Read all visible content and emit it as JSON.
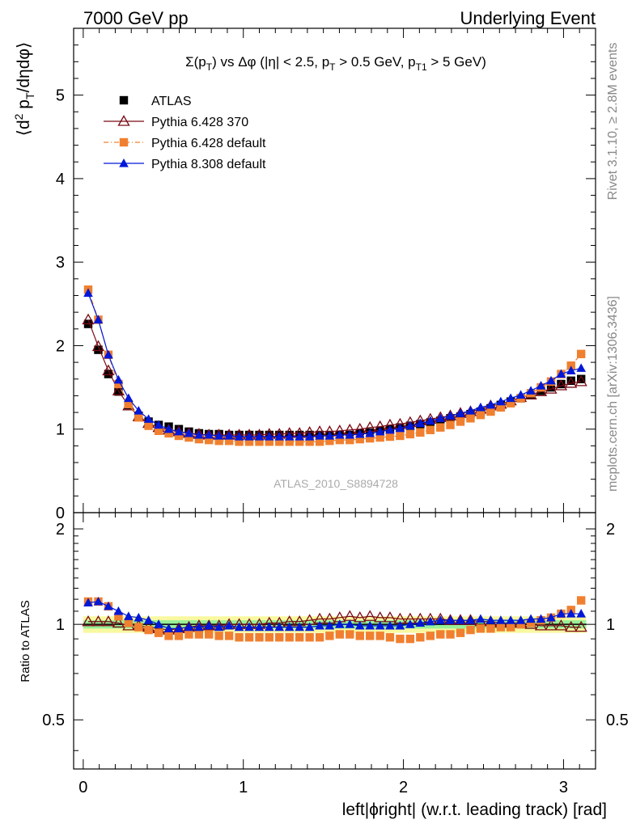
{
  "header": {
    "left": "7000 GeV pp",
    "right": "Underlying Event"
  },
  "side_text": {
    "rivet": "Rivet 3.1.10, ≥ 2.8M events",
    "mcplots": "mcplots.cern.ch [arXiv:1306.3436]"
  },
  "analysis_id": "ATLAS_2010_S8894728",
  "colors": {
    "atlas": "#000000",
    "p6_370": "#7a0a14",
    "p6_default": "#f08030",
    "p8_default": "#0018d8",
    "band_inner": "#98f098",
    "band_outer": "#f8f8a0"
  },
  "chart_data": [
    {
      "type": "scatter",
      "panel": "main",
      "title_parts": {
        "a": "Σ(p",
        "a_sub": "T",
        "b": ") vs Δφ (|η| < 2.5, p",
        "b_sub": "T",
        "c": " > 0.5 GeV, p",
        "c_sub": "T1",
        "d": " > 5 GeV)"
      },
      "ylabel_parts": {
        "a": "⟨d",
        "sup": "2",
        "b": " p",
        "sub": "T",
        "c": "/dηdφ⟩"
      },
      "xlim": [
        -0.06,
        3.2
      ],
      "ylim": [
        0,
        5.8
      ],
      "yticks": [
        0,
        1,
        2,
        3,
        4,
        5
      ],
      "ytick_labels": [
        "0",
        "1",
        "2",
        "3",
        "4",
        "5"
      ],
      "legend_placement": "top-left",
      "x": [
        0.031,
        0.094,
        0.157,
        0.22,
        0.283,
        0.346,
        0.408,
        0.471,
        0.534,
        0.597,
        0.66,
        0.723,
        0.785,
        0.848,
        0.911,
        0.974,
        1.037,
        1.1,
        1.162,
        1.225,
        1.288,
        1.351,
        1.414,
        1.477,
        1.539,
        1.602,
        1.665,
        1.728,
        1.791,
        1.854,
        1.916,
        1.979,
        2.042,
        2.105,
        2.168,
        2.231,
        2.293,
        2.356,
        2.419,
        2.482,
        2.545,
        2.608,
        2.67,
        2.733,
        2.796,
        2.859,
        2.922,
        2.985,
        3.047,
        3.11
      ],
      "series": [
        {
          "name": "ATLAS",
          "key": "atlas",
          "marker": "square",
          "values": [
            2.26,
            1.95,
            1.66,
            1.45,
            1.29,
            1.16,
            1.09,
            1.05,
            1.03,
            1.0,
            0.97,
            0.95,
            0.94,
            0.94,
            0.93,
            0.93,
            0.93,
            0.93,
            0.93,
            0.93,
            0.93,
            0.93,
            0.93,
            0.93,
            0.93,
            0.93,
            0.93,
            0.95,
            0.96,
            0.98,
            1.0,
            1.02,
            1.04,
            1.06,
            1.08,
            1.1,
            1.13,
            1.15,
            1.18,
            1.21,
            1.25,
            1.29,
            1.33,
            1.37,
            1.41,
            1.46,
            1.5,
            1.54,
            1.58,
            1.6
          ]
        },
        {
          "name": "Pythia 6.428 370",
          "key": "p6_370",
          "marker": "open-triangle",
          "values": [
            2.31,
            1.99,
            1.7,
            1.46,
            1.28,
            1.15,
            1.07,
            1.02,
            0.99,
            0.97,
            0.95,
            0.94,
            0.93,
            0.93,
            0.93,
            0.93,
            0.93,
            0.93,
            0.94,
            0.94,
            0.95,
            0.95,
            0.96,
            0.97,
            0.97,
            0.98,
            0.99,
            1.0,
            1.02,
            1.03,
            1.05,
            1.06,
            1.08,
            1.1,
            1.12,
            1.14,
            1.16,
            1.19,
            1.21,
            1.24,
            1.28,
            1.3,
            1.34,
            1.38,
            1.41,
            1.45,
            1.48,
            1.52,
            1.55,
            1.57
          ]
        },
        {
          "name": "Pythia 6.428 default",
          "key": "p6_default",
          "marker": "square-dashdot",
          "values": [
            2.67,
            2.31,
            1.89,
            1.54,
            1.3,
            1.14,
            1.04,
            0.98,
            0.95,
            0.92,
            0.9,
            0.88,
            0.87,
            0.86,
            0.86,
            0.85,
            0.85,
            0.85,
            0.85,
            0.85,
            0.85,
            0.85,
            0.85,
            0.85,
            0.86,
            0.87,
            0.87,
            0.88,
            0.89,
            0.9,
            0.91,
            0.92,
            0.94,
            0.96,
            0.99,
            1.02,
            1.05,
            1.09,
            1.13,
            1.17,
            1.21,
            1.26,
            1.31,
            1.37,
            1.43,
            1.5,
            1.57,
            1.66,
            1.76,
            1.9
          ]
        },
        {
          "name": "Pythia 8.308 default",
          "key": "p8_default",
          "marker": "triangle",
          "values": [
            2.63,
            2.31,
            1.89,
            1.59,
            1.37,
            1.22,
            1.12,
            1.05,
            1.0,
            0.97,
            0.95,
            0.93,
            0.93,
            0.92,
            0.92,
            0.91,
            0.91,
            0.91,
            0.91,
            0.91,
            0.91,
            0.91,
            0.91,
            0.92,
            0.92,
            0.93,
            0.93,
            0.94,
            0.95,
            0.97,
            0.99,
            1.01,
            1.04,
            1.07,
            1.1,
            1.13,
            1.16,
            1.19,
            1.22,
            1.26,
            1.29,
            1.33,
            1.37,
            1.41,
            1.46,
            1.52,
            1.58,
            1.66,
            1.7,
            1.73
          ]
        }
      ]
    },
    {
      "type": "scatter",
      "panel": "ratio",
      "xlabel": "left|ϕright| (w.r.t. leading track) [rad]",
      "ylabel": "Ratio to ATLAS",
      "xlim": [
        -0.06,
        3.2
      ],
      "ylim": [
        0.35,
        2.25
      ],
      "xticks": [
        0,
        1,
        2,
        3
      ],
      "xtick_labels": [
        "0",
        "1",
        "2",
        "3"
      ],
      "yticks": [
        0.5,
        1,
        2
      ],
      "ytick_labels": [
        "0.5",
        "1",
        "2"
      ],
      "band_inner": 0.03,
      "band_outer": 0.06,
      "series": [
        {
          "name": "Pythia 6.428 370",
          "key": "p6_370",
          "marker": "open-triangle",
          "values": [
            1.02,
            1.02,
            1.02,
            1.01,
            0.99,
            0.99,
            0.98,
            0.97,
            0.96,
            0.97,
            0.98,
            0.99,
            0.99,
            0.99,
            1.0,
            1.0,
            1.0,
            1.0,
            1.01,
            1.01,
            1.02,
            1.02,
            1.03,
            1.04,
            1.04,
            1.05,
            1.06,
            1.05,
            1.06,
            1.05,
            1.05,
            1.04,
            1.04,
            1.04,
            1.04,
            1.04,
            1.03,
            1.03,
            1.03,
            1.02,
            1.02,
            1.01,
            1.01,
            1.01,
            1.0,
            0.99,
            0.99,
            0.99,
            0.98,
            0.98
          ]
        },
        {
          "name": "Pythia 6.428 default",
          "key": "p6_default",
          "marker": "square",
          "values": [
            1.18,
            1.18,
            1.14,
            1.06,
            1.01,
            0.98,
            0.96,
            0.94,
            0.92,
            0.92,
            0.93,
            0.93,
            0.93,
            0.92,
            0.92,
            0.91,
            0.91,
            0.91,
            0.91,
            0.91,
            0.91,
            0.91,
            0.91,
            0.91,
            0.92,
            0.93,
            0.93,
            0.92,
            0.92,
            0.92,
            0.91,
            0.9,
            0.9,
            0.91,
            0.92,
            0.93,
            0.93,
            0.94,
            0.96,
            0.97,
            0.97,
            0.98,
            0.98,
            1.0,
            1.01,
            1.03,
            1.05,
            1.08,
            1.11,
            1.19
          ]
        },
        {
          "name": "Pythia 8.308 default",
          "key": "p8_default",
          "marker": "triangle",
          "values": [
            1.17,
            1.18,
            1.14,
            1.1,
            1.06,
            1.05,
            1.03,
            1.0,
            0.97,
            0.97,
            0.98,
            0.98,
            0.99,
            0.98,
            0.99,
            0.98,
            0.98,
            0.98,
            0.98,
            0.98,
            0.98,
            0.98,
            0.98,
            0.99,
            0.99,
            1.0,
            1.0,
            0.99,
            0.99,
            0.99,
            0.99,
            0.99,
            1.0,
            1.01,
            1.02,
            1.03,
            1.03,
            1.03,
            1.03,
            1.04,
            1.03,
            1.03,
            1.03,
            1.03,
            1.04,
            1.04,
            1.05,
            1.08,
            1.08,
            1.08
          ]
        }
      ]
    }
  ]
}
